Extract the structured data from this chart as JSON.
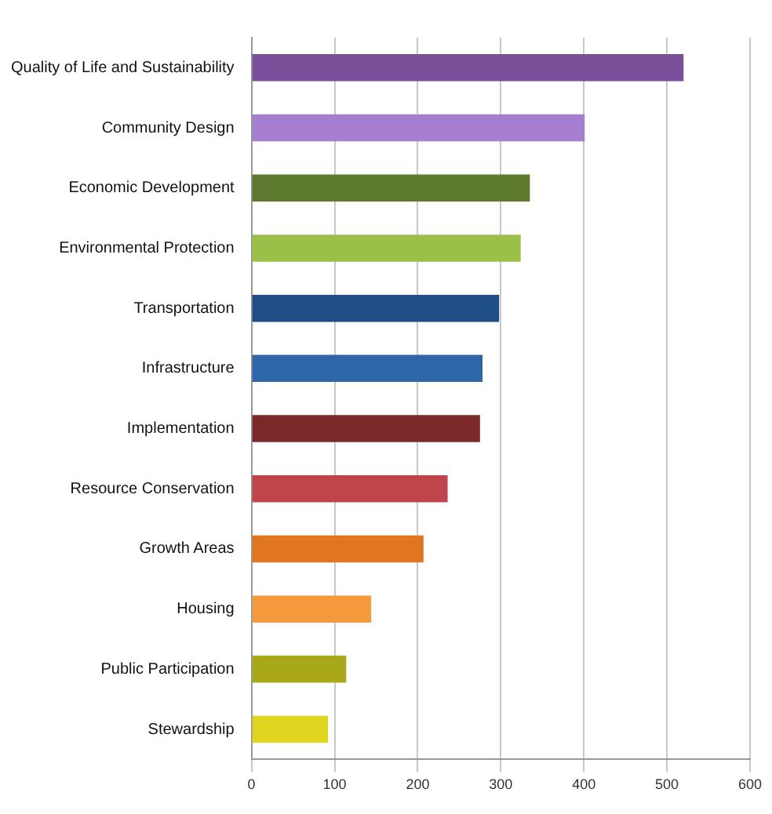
{
  "chart_data": {
    "type": "bar",
    "orientation": "horizontal",
    "categories": [
      "Quality of Life and Sustainability",
      "Community Design",
      "Economic Development",
      "Environmental Protection",
      "Transportation",
      "Infrastructure",
      "Implementation",
      "Resource Conservation",
      "Growth Areas",
      "Housing",
      "Public Participation",
      "Stewardship"
    ],
    "values": [
      520,
      401,
      335,
      324,
      298,
      278,
      275,
      236,
      207,
      144,
      114,
      92
    ],
    "colors": [
      "#7a4f9a",
      "#a77fd0",
      "#5e7a2e",
      "#9bc04a",
      "#1f4d85",
      "#2e66a8",
      "#7a2a2a",
      "#c0454a",
      "#e0761f",
      "#f59a3c",
      "#a8a81a",
      "#e0d620"
    ],
    "xlim": [
      0,
      600
    ],
    "xticks": [
      0,
      100,
      200,
      300,
      400,
      500,
      600
    ],
    "grid": "x",
    "legend": false
  }
}
